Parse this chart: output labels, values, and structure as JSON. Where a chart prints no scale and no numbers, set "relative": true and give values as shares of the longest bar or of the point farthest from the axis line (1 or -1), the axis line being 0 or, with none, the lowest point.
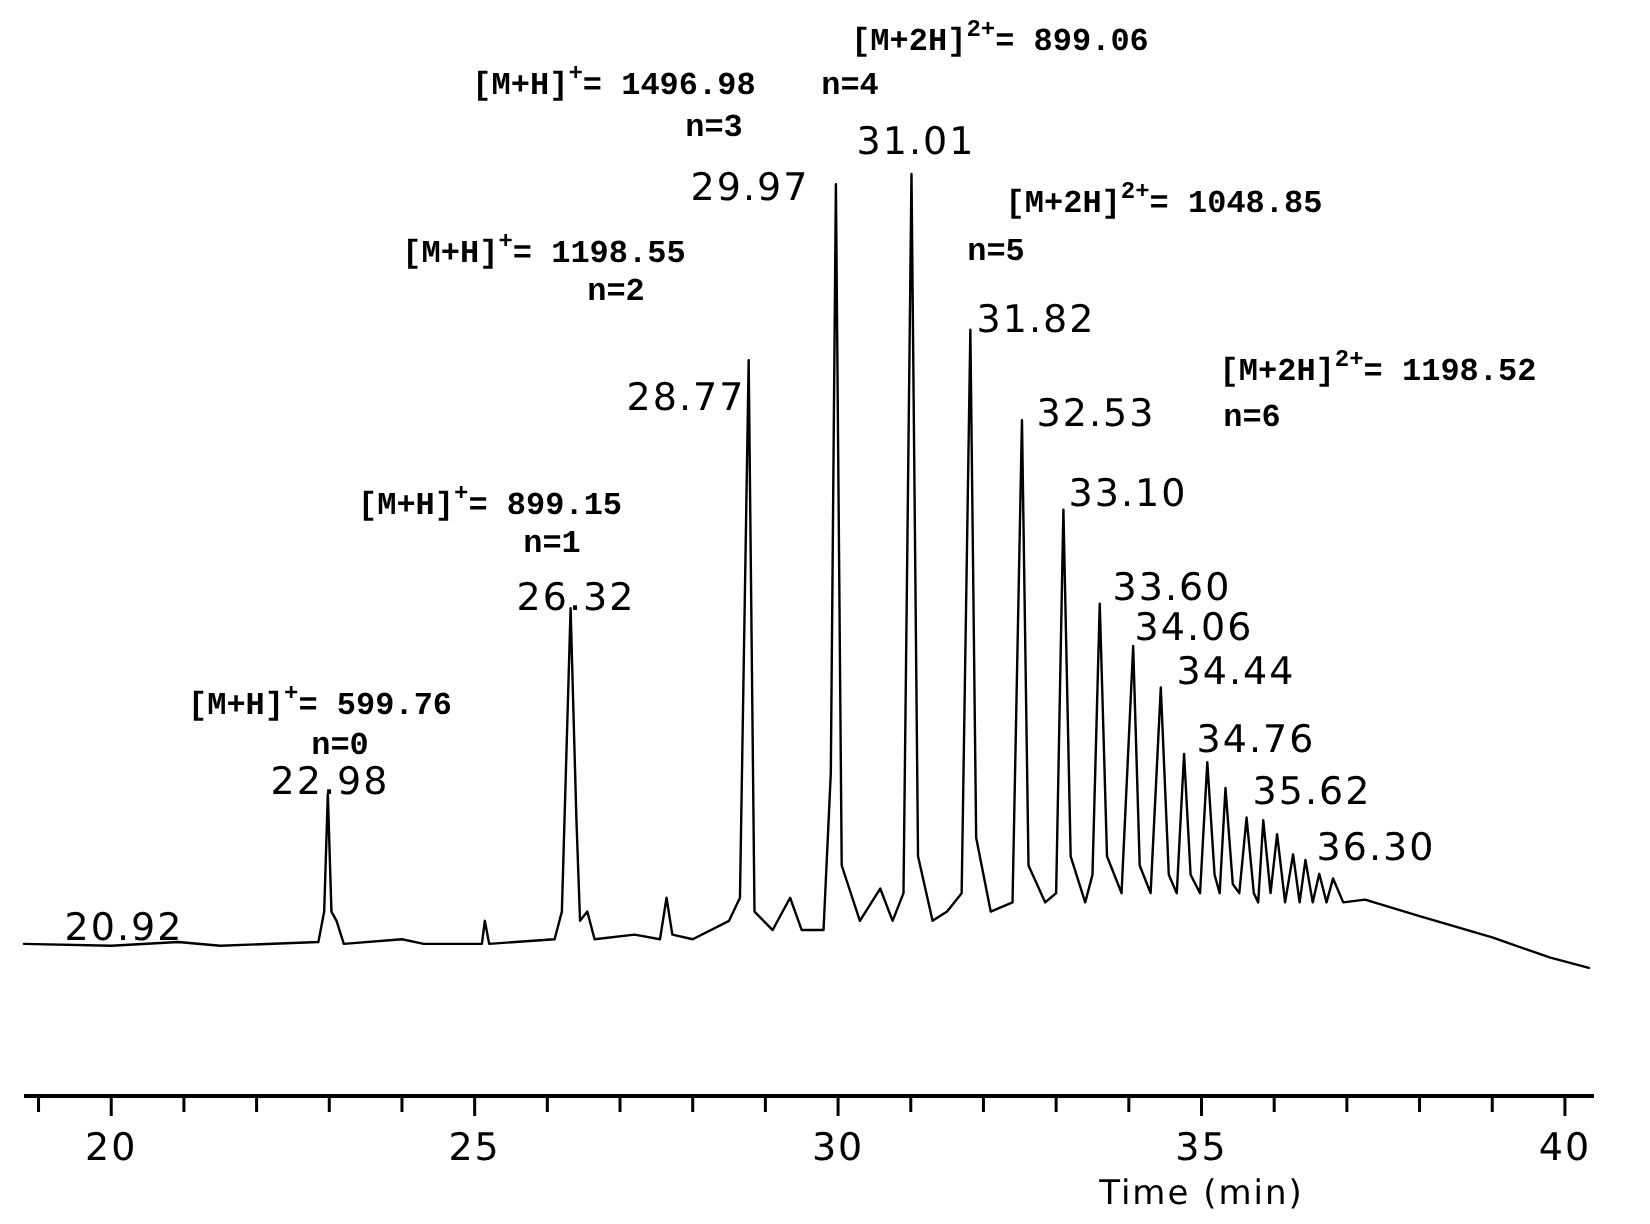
{
  "chart_data": {
    "type": "line",
    "relative": true,
    "xlabel": "Time (min)",
    "xlim": [
      18.8,
      40.4
    ],
    "xticks": [
      {
        "value": 19,
        "label": null
      },
      20,
      {
        "value": 21,
        "label": null
      },
      {
        "value": 22,
        "label": null
      },
      {
        "value": 23,
        "label": null
      },
      {
        "value": 24,
        "label": null
      },
      25,
      {
        "value": 26,
        "label": null
      },
      {
        "value": 27,
        "label": null
      },
      {
        "value": 28,
        "label": null
      },
      {
        "value": 29,
        "label": null
      },
      30,
      {
        "value": 31,
        "label": null
      },
      {
        "value": 32,
        "label": null
      },
      {
        "value": 33,
        "label": null
      },
      {
        "value": 34,
        "label": null
      },
      35,
      {
        "value": 36,
        "label": null
      },
      {
        "value": 37,
        "label": null
      },
      {
        "value": 38,
        "label": null
      },
      {
        "value": 39,
        "label": null
      },
      40
    ],
    "tick_labels": "x",
    "grid": false,
    "marker": "none",
    "line_style": "solid",
    "series": [
      {
        "color": "#000000",
        "x": [
          18.8,
          20.0,
          20.92,
          21.5,
          22.85,
          22.93,
          22.98,
          23.03,
          23.1,
          23.2,
          24.0,
          24.3,
          25.1,
          25.14,
          25.2,
          26.1,
          26.2,
          26.32,
          26.4,
          26.45,
          26.55,
          26.65,
          27.2,
          27.55,
          27.64,
          27.72,
          28.0,
          28.5,
          28.65,
          28.77,
          28.85,
          29.1,
          29.34,
          29.5,
          29.8,
          29.9,
          29.97,
          30.05,
          30.3,
          30.58,
          30.75,
          30.9,
          31.01,
          31.1,
          31.3,
          31.5,
          31.7,
          31.82,
          31.9,
          32.1,
          32.4,
          32.53,
          32.62,
          32.85,
          33.0,
          33.1,
          33.2,
          33.4,
          33.5,
          33.6,
          33.7,
          33.9,
          34.06,
          34.15,
          34.3,
          34.44,
          34.55,
          34.66,
          34.76,
          34.85,
          34.98,
          35.08,
          35.18,
          35.25,
          35.33,
          35.43,
          35.52,
          35.62,
          35.72,
          35.78,
          35.85,
          35.95,
          36.04,
          36.15,
          36.26,
          36.35,
          36.43,
          36.53,
          36.62,
          36.72,
          36.81,
          36.95,
          37.25,
          38.0,
          39.0,
          39.8,
          40.33
        ],
        "values": [
          0.165,
          0.163,
          0.167,
          0.163,
          0.167,
          0.2,
          0.328,
          0.2,
          0.19,
          0.165,
          0.17,
          0.165,
          0.165,
          0.19,
          0.165,
          0.17,
          0.2,
          0.529,
          0.3,
          0.19,
          0.2,
          0.17,
          0.175,
          0.17,
          0.215,
          0.175,
          0.17,
          0.19,
          0.215,
          0.798,
          0.2,
          0.18,
          0.215,
          0.18,
          0.18,
          0.35,
          0.989,
          0.25,
          0.19,
          0.225,
          0.19,
          0.22,
          1.0,
          0.26,
          0.19,
          0.2,
          0.22,
          0.831,
          0.28,
          0.2,
          0.21,
          0.733,
          0.25,
          0.21,
          0.22,
          0.636,
          0.26,
          0.21,
          0.24,
          0.534,
          0.26,
          0.22,
          0.488,
          0.25,
          0.22,
          0.443,
          0.24,
          0.22,
          0.371,
          0.24,
          0.22,
          0.362,
          0.24,
          0.22,
          0.334,
          0.23,
          0.22,
          0.302,
          0.22,
          0.21,
          0.299,
          0.22,
          0.284,
          0.21,
          0.262,
          0.21,
          0.256,
          0.21,
          0.241,
          0.21,
          0.236,
          0.21,
          0.213,
          0.195,
          0.172,
          0.15,
          0.139
        ]
      }
    ],
    "annotations": [
      "20.92",
      "22.98",
      "26.32",
      "28.77",
      "29.97",
      "31.01",
      "31.82",
      "32.53",
      "33.10",
      "33.60",
      "34.06",
      "34.44",
      "34.76",
      "35.62",
      "36.30",
      "[M+H]$^{+}$= 599.76",
      "n=0",
      "[M+H]$^{+}$= 899.15",
      "n=1",
      "[M+H]$^{+}$= 1198.55",
      "n=2",
      "[M+H]$^{+}$= 1496.98",
      "n=3",
      "[M+2H]$^{2+}$= 899.06",
      "n=4",
      "[M+2H]$^{2+}$= 1048.85",
      "n=5",
      "[M+2H]$^{2+}$= 1198.52",
      "n=6"
    ]
  }
}
